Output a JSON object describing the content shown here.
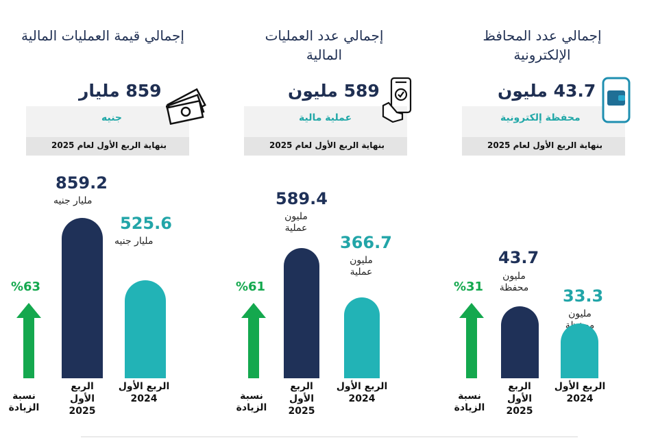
{
  "colors": {
    "navy": "#1f3158",
    "teal": "#22b3b6",
    "green": "#14a84e"
  },
  "panels": [
    {
      "title": "إجمالي قيمة العمليات المالية",
      "kpi_value": "859 مليار",
      "kpi_unit": "جنيه",
      "kpi_period": "بنهاية الربع الأول لعام 2025",
      "icon": "money-icon",
      "increase_pct": "%63",
      "increase_label": "نسبة الزيادة",
      "bar_2025_value": "859.2",
      "bar_2025_unit": "مليار جنيه",
      "bar_2024_value": "525.6",
      "bar_2024_unit": "مليار جنيه",
      "label_2025": "الربع الأول 2025",
      "label_2024": "الربع الأول 2024"
    },
    {
      "title": "إجمالي عدد العمليات المالية",
      "kpi_value": "589 مليون",
      "kpi_unit": "عملية مالية",
      "kpi_period": "بنهاية الربع الأول لعام 2025",
      "icon": "phone-check-icon",
      "increase_pct": "%61",
      "increase_label": "نسبة الزيادة",
      "bar_2025_value": "589.4",
      "bar_2025_unit": "مليون عملية",
      "bar_2024_value": "366.7",
      "bar_2024_unit": "مليون عملية",
      "label_2025": "الربع الأول 2025",
      "label_2024": "الربع الأول 2024"
    },
    {
      "title": "إجمالي عدد المحافظ الإلكترونية",
      "kpi_value": "43.7 مليون",
      "kpi_unit": "محفظة إلكترونية",
      "kpi_period": "بنهاية الربع الأول لعام 2025",
      "icon": "wallet-phone-icon",
      "increase_pct": "%31",
      "increase_label": "نسبة الزيادة",
      "bar_2025_value": "43.7",
      "bar_2025_unit": "مليون محفظة",
      "bar_2024_value": "33.3",
      "bar_2024_unit": "مليون محفظة",
      "label_2025": "الربع الأول 2025",
      "label_2024": "الربع الأول 2024"
    }
  ],
  "chart_data": [
    {
      "type": "bar",
      "title": "إجمالي قيمة العمليات المالية",
      "categories": [
        "الربع الأول 2025",
        "الربع الأول 2024"
      ],
      "values": [
        859.2,
        525.6
      ],
      "unit": "مليار جنيه"
    },
    {
      "type": "bar",
      "title": "إجمالي عدد العمليات المالية",
      "categories": [
        "الربع الأول 2025",
        "الربع الأول 2024"
      ],
      "values": [
        589.4,
        366.7
      ],
      "unit": "مليون عملية"
    },
    {
      "type": "bar",
      "title": "إجمالي عدد المحافظ الإلكترونية",
      "categories": [
        "الربع الأول 2025",
        "الربع الأول 2024"
      ],
      "values": [
        43.7,
        33.3
      ],
      "unit": "مليون محفظة"
    }
  ]
}
